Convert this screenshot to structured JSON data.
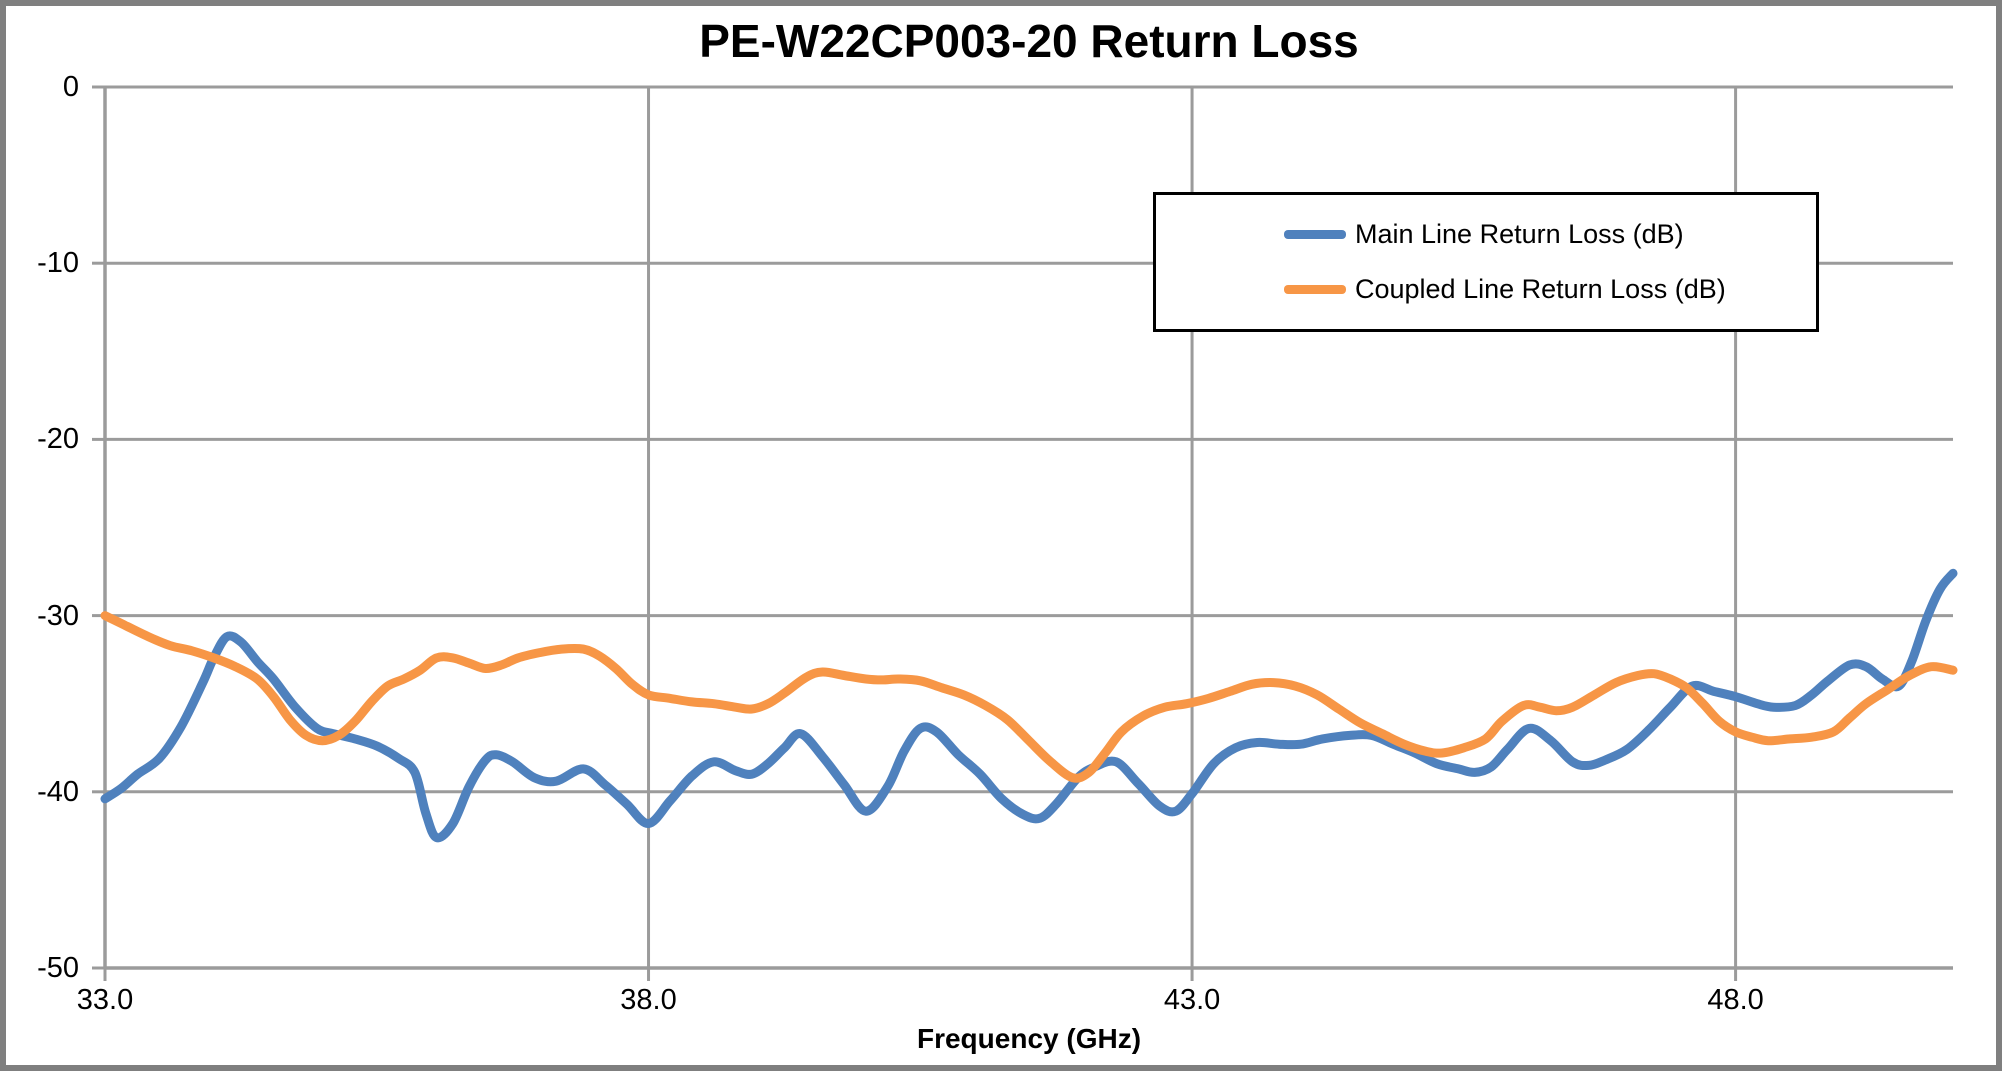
{
  "chart_data": {
    "type": "line",
    "title": "PE-W22CP003-20 Return Loss",
    "xlabel": "Frequency (GHz)",
    "ylabel": "",
    "xlim": [
      33,
      50
    ],
    "ylim": [
      -50,
      0
    ],
    "grid": true,
    "legend_position": "top-right-inside",
    "x_ticks": [
      {
        "label": "33.0",
        "value": 33
      },
      {
        "label": "38.0",
        "value": 38
      },
      {
        "label": "43.0",
        "value": 43
      },
      {
        "label": "48.0",
        "value": 48
      }
    ],
    "y_ticks": [
      {
        "label": "0",
        "value": 0
      },
      {
        "label": "-10",
        "value": -10
      },
      {
        "label": "-20",
        "value": -20
      },
      {
        "label": "-30",
        "value": -30
      },
      {
        "label": "-40",
        "value": -40
      },
      {
        "label": "-50",
        "value": -50
      }
    ],
    "colors": {
      "grid": "#9b9b9b",
      "axis": "#9b9b9b",
      "frame": "#7f7f7f",
      "main_series": "#4F81BD",
      "coupled_series": "#F79646"
    },
    "series": [
      {
        "name": "Main Line Return Loss (dB)",
        "color": "#4F81BD",
        "points": [
          [
            33.0,
            -40.4
          ],
          [
            33.15,
            -39.8
          ],
          [
            33.3,
            -39.0
          ],
          [
            33.5,
            -38.1
          ],
          [
            33.7,
            -36.3
          ],
          [
            33.9,
            -33.8
          ],
          [
            34.0,
            -32.4
          ],
          [
            34.12,
            -31.2
          ],
          [
            34.25,
            -31.5
          ],
          [
            34.4,
            -32.6
          ],
          [
            34.55,
            -33.6
          ],
          [
            34.75,
            -35.2
          ],
          [
            34.95,
            -36.4
          ],
          [
            35.1,
            -36.7
          ],
          [
            35.3,
            -37.0
          ],
          [
            35.5,
            -37.4
          ],
          [
            35.7,
            -38.1
          ],
          [
            35.85,
            -38.9
          ],
          [
            35.95,
            -41.2
          ],
          [
            36.05,
            -42.6
          ],
          [
            36.2,
            -41.8
          ],
          [
            36.35,
            -39.7
          ],
          [
            36.5,
            -38.2
          ],
          [
            36.6,
            -37.9
          ],
          [
            36.75,
            -38.3
          ],
          [
            36.95,
            -39.2
          ],
          [
            37.15,
            -39.4
          ],
          [
            37.4,
            -38.7
          ],
          [
            37.6,
            -39.6
          ],
          [
            37.8,
            -40.7
          ],
          [
            38.0,
            -41.8
          ],
          [
            38.2,
            -40.5
          ],
          [
            38.4,
            -39.1
          ],
          [
            38.6,
            -38.3
          ],
          [
            38.8,
            -38.8
          ],
          [
            38.95,
            -39.0
          ],
          [
            39.1,
            -38.4
          ],
          [
            39.25,
            -37.5
          ],
          [
            39.4,
            -36.7
          ],
          [
            39.6,
            -38.0
          ],
          [
            39.8,
            -39.6
          ],
          [
            40.0,
            -41.1
          ],
          [
            40.2,
            -39.7
          ],
          [
            40.35,
            -37.7
          ],
          [
            40.5,
            -36.4
          ],
          [
            40.65,
            -36.6
          ],
          [
            40.85,
            -37.9
          ],
          [
            41.05,
            -39.0
          ],
          [
            41.25,
            -40.4
          ],
          [
            41.45,
            -41.3
          ],
          [
            41.6,
            -41.5
          ],
          [
            41.75,
            -40.7
          ],
          [
            41.95,
            -39.2
          ],
          [
            42.1,
            -38.6
          ],
          [
            42.3,
            -38.3
          ],
          [
            42.5,
            -39.5
          ],
          [
            42.7,
            -40.8
          ],
          [
            42.85,
            -41.1
          ],
          [
            43.0,
            -40.1
          ],
          [
            43.2,
            -38.4
          ],
          [
            43.4,
            -37.5
          ],
          [
            43.6,
            -37.2
          ],
          [
            43.8,
            -37.3
          ],
          [
            44.0,
            -37.3
          ],
          [
            44.2,
            -37.0
          ],
          [
            44.45,
            -36.8
          ],
          [
            44.65,
            -36.8
          ],
          [
            44.85,
            -37.3
          ],
          [
            45.05,
            -37.8
          ],
          [
            45.25,
            -38.4
          ],
          [
            45.45,
            -38.7
          ],
          [
            45.6,
            -38.9
          ],
          [
            45.75,
            -38.6
          ],
          [
            45.9,
            -37.6
          ],
          [
            46.1,
            -36.4
          ],
          [
            46.3,
            -37.1
          ],
          [
            46.5,
            -38.3
          ],
          [
            46.65,
            -38.5
          ],
          [
            46.8,
            -38.2
          ],
          [
            47.0,
            -37.6
          ],
          [
            47.2,
            -36.5
          ],
          [
            47.4,
            -35.2
          ],
          [
            47.6,
            -34.0
          ],
          [
            47.8,
            -34.3
          ],
          [
            48.0,
            -34.6
          ],
          [
            48.2,
            -35.0
          ],
          [
            48.35,
            -35.2
          ],
          [
            48.55,
            -35.1
          ],
          [
            48.7,
            -34.5
          ],
          [
            48.85,
            -33.7
          ],
          [
            49.05,
            -32.8
          ],
          [
            49.2,
            -32.9
          ],
          [
            49.35,
            -33.6
          ],
          [
            49.5,
            -34.0
          ],
          [
            49.62,
            -32.6
          ],
          [
            49.75,
            -30.3
          ],
          [
            49.88,
            -28.5
          ],
          [
            50.0,
            -27.6
          ]
        ]
      },
      {
        "name": "Coupled Line Return Loss (dB)",
        "color": "#F79646",
        "points": [
          [
            33.0,
            -30.0
          ],
          [
            33.2,
            -30.6
          ],
          [
            33.4,
            -31.2
          ],
          [
            33.6,
            -31.7
          ],
          [
            33.8,
            -32.0
          ],
          [
            34.0,
            -32.4
          ],
          [
            34.2,
            -32.9
          ],
          [
            34.4,
            -33.6
          ],
          [
            34.55,
            -34.6
          ],
          [
            34.7,
            -35.9
          ],
          [
            34.85,
            -36.8
          ],
          [
            35.0,
            -37.1
          ],
          [
            35.15,
            -36.8
          ],
          [
            35.3,
            -36.0
          ],
          [
            35.45,
            -34.9
          ],
          [
            35.6,
            -34.0
          ],
          [
            35.75,
            -33.6
          ],
          [
            35.9,
            -33.1
          ],
          [
            36.05,
            -32.4
          ],
          [
            36.2,
            -32.4
          ],
          [
            36.35,
            -32.7
          ],
          [
            36.5,
            -33.0
          ],
          [
            36.65,
            -32.8
          ],
          [
            36.8,
            -32.4
          ],
          [
            37.0,
            -32.1
          ],
          [
            37.2,
            -31.9
          ],
          [
            37.4,
            -31.9
          ],
          [
            37.55,
            -32.3
          ],
          [
            37.7,
            -33.0
          ],
          [
            37.85,
            -33.9
          ],
          [
            38.0,
            -34.5
          ],
          [
            38.2,
            -34.7
          ],
          [
            38.4,
            -34.9
          ],
          [
            38.6,
            -35.0
          ],
          [
            38.8,
            -35.2
          ],
          [
            38.95,
            -35.3
          ],
          [
            39.1,
            -35.0
          ],
          [
            39.25,
            -34.4
          ],
          [
            39.45,
            -33.5
          ],
          [
            39.6,
            -33.2
          ],
          [
            39.8,
            -33.4
          ],
          [
            40.0,
            -33.6
          ],
          [
            40.15,
            -33.65
          ],
          [
            40.3,
            -33.6
          ],
          [
            40.5,
            -33.7
          ],
          [
            40.7,
            -34.1
          ],
          [
            40.9,
            -34.5
          ],
          [
            41.1,
            -35.1
          ],
          [
            41.3,
            -35.9
          ],
          [
            41.5,
            -37.1
          ],
          [
            41.7,
            -38.3
          ],
          [
            41.9,
            -39.2
          ],
          [
            42.05,
            -38.9
          ],
          [
            42.2,
            -37.8
          ],
          [
            42.35,
            -36.6
          ],
          [
            42.55,
            -35.7
          ],
          [
            42.75,
            -35.2
          ],
          [
            42.95,
            -35.0
          ],
          [
            43.15,
            -34.7
          ],
          [
            43.35,
            -34.3
          ],
          [
            43.55,
            -33.9
          ],
          [
            43.75,
            -33.8
          ],
          [
            43.95,
            -34.0
          ],
          [
            44.15,
            -34.5
          ],
          [
            44.35,
            -35.3
          ],
          [
            44.55,
            -36.1
          ],
          [
            44.75,
            -36.7
          ],
          [
            44.95,
            -37.3
          ],
          [
            45.15,
            -37.7
          ],
          [
            45.3,
            -37.8
          ],
          [
            45.5,
            -37.5
          ],
          [
            45.7,
            -37.0
          ],
          [
            45.85,
            -36.0
          ],
          [
            46.05,
            -35.1
          ],
          [
            46.2,
            -35.2
          ],
          [
            46.35,
            -35.4
          ],
          [
            46.5,
            -35.2
          ],
          [
            46.7,
            -34.5
          ],
          [
            46.9,
            -33.8
          ],
          [
            47.1,
            -33.4
          ],
          [
            47.25,
            -33.3
          ],
          [
            47.4,
            -33.6
          ],
          [
            47.55,
            -34.1
          ],
          [
            47.7,
            -35.0
          ],
          [
            47.85,
            -36.0
          ],
          [
            48.0,
            -36.6
          ],
          [
            48.15,
            -36.9
          ],
          [
            48.3,
            -37.1
          ],
          [
            48.5,
            -37.0
          ],
          [
            48.7,
            -36.9
          ],
          [
            48.9,
            -36.6
          ],
          [
            49.05,
            -35.8
          ],
          [
            49.2,
            -35.0
          ],
          [
            49.4,
            -34.2
          ],
          [
            49.6,
            -33.4
          ],
          [
            49.8,
            -32.9
          ],
          [
            50.0,
            -33.1
          ]
        ]
      }
    ]
  }
}
